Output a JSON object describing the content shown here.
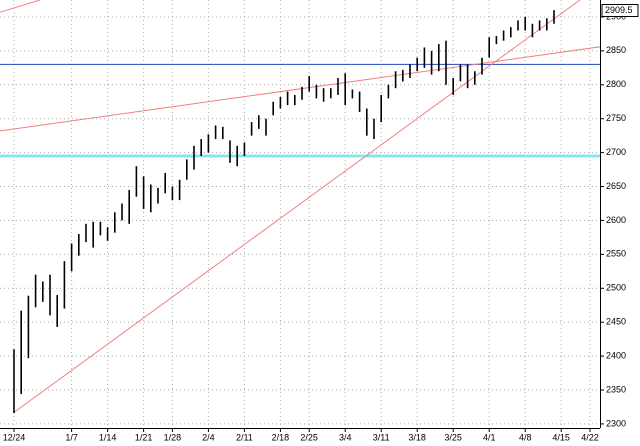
{
  "chart_data": {
    "type": "hilo",
    "categories": [
      "12/24",
      null,
      null,
      null,
      null,
      null,
      null,
      null,
      "1/7",
      null,
      null,
      null,
      null,
      "1/14",
      null,
      null,
      null,
      null,
      "1/21",
      null,
      null,
      null,
      "1/28",
      null,
      null,
      null,
      null,
      "2/4",
      null,
      null,
      null,
      null,
      "2/11",
      null,
      null,
      null,
      null,
      "2/18",
      null,
      null,
      null,
      "2/25",
      null,
      null,
      null,
      null,
      "3/4",
      null,
      null,
      null,
      null,
      "3/11",
      null,
      null,
      null,
      null,
      "3/18",
      null,
      null,
      null,
      null,
      "3/25",
      null,
      null,
      null,
      null,
      "4/1",
      null,
      null,
      null,
      null,
      "4/8",
      null,
      null,
      null,
      null,
      "4/15",
      null,
      null,
      null,
      "4/22"
    ],
    "high": [
      2410,
      2467,
      2489,
      2520,
      2510,
      2520,
      2490,
      2540,
      2566,
      2580,
      2595,
      2598,
      2598,
      2590,
      2612,
      2625,
      2645,
      2680,
      2665,
      2653,
      2648,
      2670,
      2650,
      2660,
      2690,
      2710,
      2720,
      2727,
      2740,
      2738,
      2718,
      2710,
      2715,
      2745,
      2755,
      2750,
      2775,
      2782,
      2790,
      2785,
      2797,
      2813,
      2800,
      2795,
      2795,
      2810,
      2817,
      2793,
      2790,
      2765,
      2750,
      2785,
      2800,
      2820,
      2822,
      2830,
      2840,
      2855,
      2850,
      2860,
      2865,
      2810,
      2830,
      2830,
      2820,
      2840,
      2870,
      2872,
      2880,
      2885,
      2895,
      2900,
      2890,
      2895,
      2898,
      2910,
      null,
      null,
      null,
      null,
      null
    ],
    "low": [
      2316,
      2344,
      2397,
      2472,
      2480,
      2460,
      2443,
      2470,
      2525,
      2548,
      2568,
      2560,
      2578,
      2570,
      2582,
      2600,
      2595,
      2635,
      2617,
      2612,
      2625,
      2640,
      2630,
      2630,
      2660,
      2675,
      2695,
      2700,
      2720,
      2720,
      2685,
      2680,
      2695,
      2725,
      2735,
      2725,
      2755,
      2765,
      2770,
      2770,
      2778,
      2790,
      2780,
      2775,
      2780,
      2785,
      2770,
      2780,
      2760,
      2725,
      2720,
      2745,
      2780,
      2795,
      2805,
      2810,
      2820,
      2825,
      2815,
      2820,
      2800,
      2785,
      2805,
      2795,
      2800,
      2815,
      2840,
      2860,
      2865,
      2870,
      2880,
      2880,
      2870,
      2880,
      2880,
      2890,
      null,
      null,
      null,
      null,
      null
    ],
    "color": "#000000",
    "ylim": [
      2294,
      2925
    ],
    "yticks": [
      2300,
      2350,
      2400,
      2450,
      2500,
      2550,
      2600,
      2650,
      2700,
      2750,
      2800,
      2850,
      2900
    ],
    "grid": true,
    "last_price": 2909.5,
    "hlines": [
      {
        "value": 2830,
        "color": "#2244bb"
      },
      {
        "value": 2695,
        "color": "#88e4ee"
      }
    ],
    "trendlines": [
      {
        "color": "#f08080",
        "points": [
          [
            0,
            2317
          ],
          [
            78.6,
            2925
          ]
        ]
      },
      {
        "color": "#f08080",
        "points": [
          [
            -1.94,
            2732
          ],
          [
            81.4,
            2856
          ]
        ]
      },
      {
        "color": "#f08080",
        "points": [
          [
            -1.94,
            2907
          ],
          [
            3.6,
            2925
          ]
        ]
      }
    ]
  }
}
